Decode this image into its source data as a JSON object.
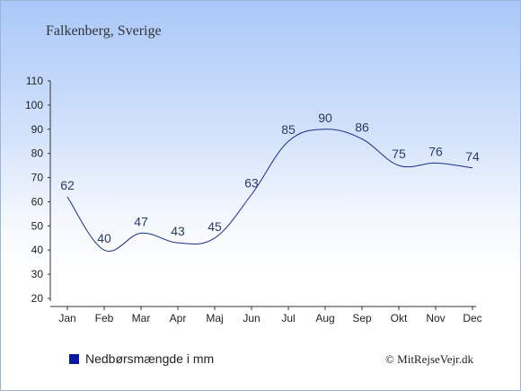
{
  "chart_data": {
    "type": "line",
    "title": "Falkenberg, Sverige",
    "categories": [
      "Jan",
      "Feb",
      "Mar",
      "Apr",
      "Maj",
      "Jun",
      "Jul",
      "Aug",
      "Sep",
      "Okt",
      "Nov",
      "Dec"
    ],
    "series": [
      {
        "name": "Nedbørsmængde i mm",
        "values": [
          62,
          40,
          47,
          43,
          45,
          63,
          85,
          90,
          86,
          75,
          76,
          74
        ]
      }
    ],
    "ylim": [
      20,
      110
    ],
    "yticks": [
      20,
      30,
      40,
      50,
      60,
      70,
      80,
      90,
      100,
      110
    ],
    "grid": false,
    "legend_position": "bottom-left",
    "line_color": "#1a2f8f",
    "legend_color": "#0a1aa0"
  },
  "legend": {
    "label": "Nedbørsmængde i mm"
  },
  "footer": {
    "copyright": "© MitRejseVejr.dk"
  }
}
